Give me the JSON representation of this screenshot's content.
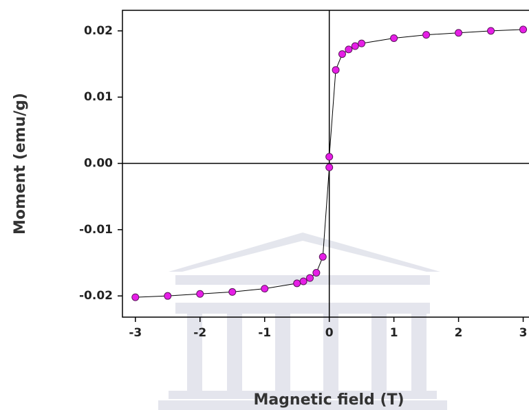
{
  "chart_data": {
    "type": "line",
    "xlabel": "Magnetic field (T)",
    "ylabel": "Moment (emu/g)",
    "x": [
      -3,
      -2.5,
      -2,
      -1.5,
      -1,
      -0.5,
      -0.4,
      -0.3,
      -0.2,
      -0.1,
      0,
      0,
      0.1,
      0.2,
      0.3,
      0.4,
      0.5,
      1,
      1.5,
      2,
      2.5,
      3
    ],
    "series": [
      {
        "color": "#e61ee6",
        "line_color": "#000000",
        "values": [
          -0.0202,
          -0.02,
          -0.0197,
          -0.0194,
          -0.0189,
          -0.0181,
          -0.0178,
          -0.0173,
          -0.0165,
          -0.0141,
          -0.0006,
          0.001,
          0.0141,
          0.0165,
          0.0172,
          0.0177,
          0.0181,
          0.0189,
          0.0194,
          0.0197,
          0.02,
          0.0202
        ]
      }
    ],
    "xlim": [
      -3.2,
      3.09
    ],
    "ylim": [
      -0.0232,
      0.0231
    ],
    "xticks": [
      -3,
      -2,
      -1,
      0,
      1,
      2,
      3
    ],
    "yticks": [
      0.02,
      0.01,
      {
        "value": 0,
        "label": "0.00"
      },
      -0.01,
      -0.02
    ],
    "zero_lines": true,
    "grid": false
  }
}
